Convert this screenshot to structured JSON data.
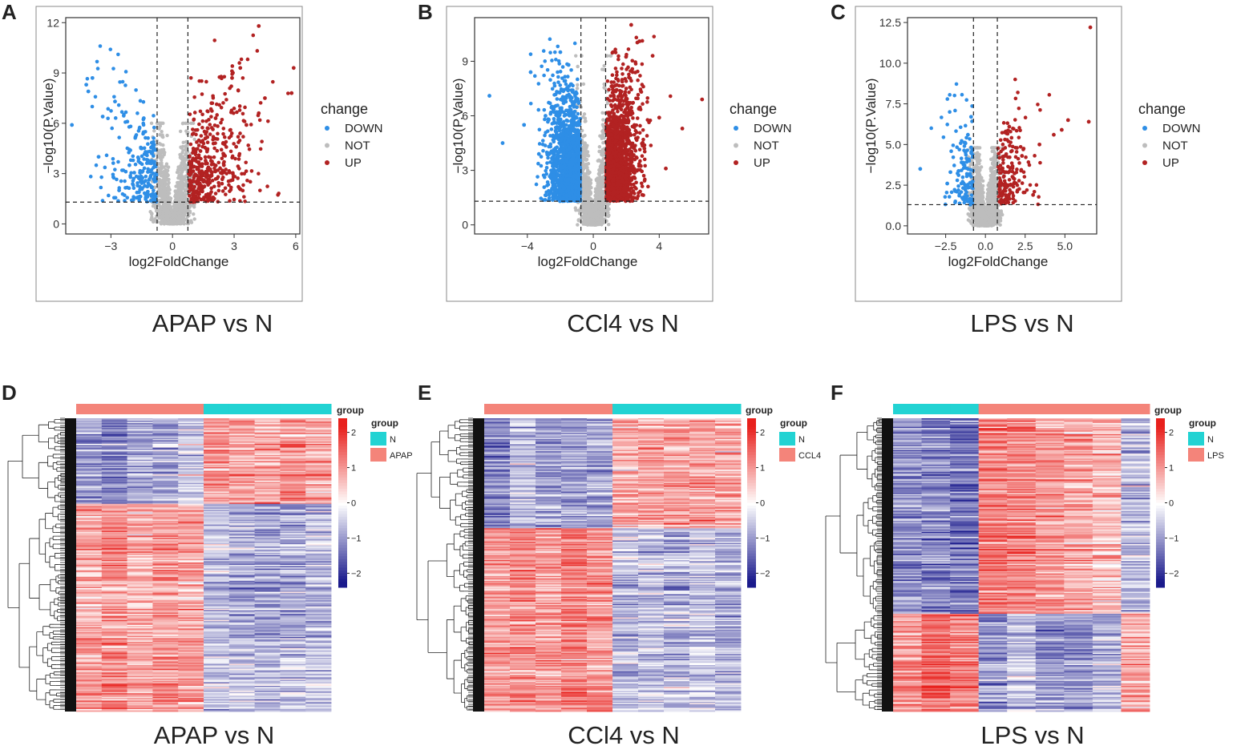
{
  "panel_letters": [
    "A",
    "B",
    "C",
    "D",
    "E",
    "F"
  ],
  "colors": {
    "down": "#2e8ee6",
    "not": "#bdbdbd",
    "up": "#b22222",
    "group_n": "#22d3d3",
    "group_treat": "#f4847a",
    "hm_low": "#1a1a8c",
    "hm_mid": "#ffffff",
    "hm_high": "#e8201c"
  },
  "chart_data": [
    {
      "type": "scatter",
      "panel": "A",
      "caption": "APAP vs N",
      "xlabel": "log2FoldChange",
      "ylabel": "−log10(P.Value)",
      "xticks": [
        "−3",
        "0",
        "3",
        "6"
      ],
      "xtick_values": [
        -3,
        0,
        3,
        6
      ],
      "yticks": [
        "0",
        "3",
        "6",
        "9",
        "12"
      ],
      "ytick_values": [
        0,
        3,
        6,
        9,
        12
      ],
      "xlim": [
        -5.2,
        6.2
      ],
      "ylim": [
        -0.6,
        12.3
      ],
      "fc_threshold": [
        -0.75,
        0.75
      ],
      "p_threshold": 1.3,
      "legend": {
        "title": "change",
        "items": [
          "DOWN",
          "NOT",
          "UP"
        ]
      },
      "series": {
        "DOWN": [
          [
            -4.9,
            5.9
          ],
          [
            -3.9,
            8.7
          ],
          [
            -4.2,
            8.3
          ],
          [
            -4.1,
            7.9
          ],
          [
            -2.8,
            7.3
          ],
          [
            -3.4,
            6.4
          ],
          [
            -2.2,
            6.1
          ],
          [
            -3.6,
            4.0
          ],
          [
            -2.6,
            2.0
          ],
          [
            -1.5,
            4.5
          ],
          [
            -1.2,
            3.1
          ],
          [
            -1.8,
            5.2
          ],
          [
            -1.0,
            2.2
          ],
          [
            -2.1,
            3.5
          ],
          [
            -1.4,
            6.3
          ],
          [
            -0.9,
            1.6
          ]
        ],
        "UP": [
          [
            4.2,
            11.8
          ],
          [
            5.9,
            9.3
          ],
          [
            3.3,
            9.3
          ],
          [
            2.9,
            8.7
          ],
          [
            5.8,
            7.8
          ],
          [
            4.5,
            7.5
          ],
          [
            4.2,
            6.6
          ],
          [
            3.6,
            5.9
          ],
          [
            2.1,
            6.3
          ],
          [
            1.6,
            5.1
          ],
          [
            2.5,
            3.5
          ],
          [
            1.2,
            2.4
          ],
          [
            1.0,
            1.6
          ],
          [
            3.1,
            4.6
          ],
          [
            1.9,
            7.2
          ],
          [
            0.9,
            3.0
          ]
        ],
        "NOT_max_y": 6.0
      },
      "density": {
        "down_n": 230,
        "up_n": 420,
        "down_spread": 1.6,
        "up_spread": 2.3
      }
    },
    {
      "type": "scatter",
      "panel": "B",
      "caption": "CCl4 vs N",
      "xlabel": "log2FoldChange",
      "ylabel": "−log10(P.Value)",
      "xticks": [
        "−4",
        "0",
        "4"
      ],
      "xtick_values": [
        -4,
        0,
        4
      ],
      "yticks": [
        "0",
        "3",
        "6",
        "9"
      ],
      "ytick_values": [
        0,
        3,
        6,
        9
      ],
      "xlim": [
        -7.2,
        7.0
      ],
      "ylim": [
        -0.5,
        11.4
      ],
      "fc_threshold": [
        -0.75,
        0.75
      ],
      "p_threshold": 1.3,
      "legend": {
        "title": "change",
        "items": [
          "DOWN",
          "NOT",
          "UP"
        ]
      },
      "series": {
        "DOWN": [
          [
            -6.3,
            7.1
          ],
          [
            -5.5,
            4.5
          ],
          [
            -3.8,
            8.4
          ],
          [
            -2.9,
            6.0
          ],
          [
            -2.0,
            9.5
          ],
          [
            -1.5,
            8.8
          ],
          [
            -4.2,
            5.5
          ],
          [
            -3.3,
            3.9
          ],
          [
            -2.5,
            2.0
          ],
          [
            -1.1,
            1.5
          ],
          [
            -1.8,
            3.2
          ],
          [
            -0.9,
            6.8
          ]
        ],
        "UP": [
          [
            2.3,
            11.0
          ],
          [
            2.8,
            10.1
          ],
          [
            3.6,
            9.3
          ],
          [
            6.6,
            6.9
          ],
          [
            5.4,
            5.3
          ],
          [
            4.0,
            5.9
          ],
          [
            3.1,
            4.2
          ],
          [
            1.5,
            2.2
          ],
          [
            1.0,
            1.5
          ],
          [
            2.0,
            7.5
          ],
          [
            1.2,
            9.5
          ],
          [
            4.4,
            3.1
          ]
        ],
        "NOT_max_y": 9.3
      },
      "density": {
        "down_n": 1500,
        "up_n": 1500,
        "down_spread": 1.3,
        "up_spread": 1.3
      }
    },
    {
      "type": "scatter",
      "panel": "C",
      "caption": "LPS vs N",
      "xlabel": "log2FoldChange",
      "ylabel": "−log10(P.Value)",
      "xticks": [
        "−2.5",
        "0.0",
        "2.5",
        "5.0"
      ],
      "xtick_values": [
        -2.5,
        0,
        2.5,
        5
      ],
      "yticks": [
        "0.0",
        "2.5",
        "5.0",
        "7.5",
        "10.0",
        "12.5"
      ],
      "ytick_values": [
        0,
        2.5,
        5,
        7.5,
        10,
        12.5
      ],
      "xlim": [
        -4.9,
        7.0
      ],
      "ylim": [
        -0.5,
        12.8
      ],
      "fc_threshold": [
        -0.75,
        0.75
      ],
      "p_threshold": 1.3,
      "legend": {
        "title": "change",
        "items": [
          "DOWN",
          "NOT",
          "UP"
        ]
      },
      "series": {
        "DOWN": [
          [
            -4.1,
            3.5
          ],
          [
            -2.4,
            2.6
          ],
          [
            -2.2,
            3.3
          ],
          [
            -1.5,
            3.9
          ],
          [
            -0.9,
            6.7
          ],
          [
            -1.1,
            5.6
          ],
          [
            -1.8,
            2.1
          ],
          [
            -1.0,
            1.5
          ]
        ],
        "UP": [
          [
            6.6,
            12.2
          ],
          [
            6.5,
            6.4
          ],
          [
            5.2,
            6.5
          ],
          [
            4.8,
            5.9
          ],
          [
            4.3,
            5.6
          ],
          [
            3.4,
            5.0
          ],
          [
            2.3,
            4.3
          ],
          [
            1.5,
            6.1
          ],
          [
            1.0,
            1.6
          ],
          [
            2.0,
            2.1
          ],
          [
            3.0,
            1.9
          ],
          [
            1.3,
            3.3
          ]
        ],
        "NOT_max_y": 4.8
      },
      "density": {
        "down_n": 120,
        "up_n": 170,
        "down_spread": 1.2,
        "up_spread": 1.4
      }
    },
    {
      "type": "heatmap",
      "panel": "D",
      "caption": "APAP vs N",
      "columns": [
        "APAP",
        "APAP",
        "APAP",
        "APAP",
        "APAP",
        "N",
        "N",
        "N",
        "N",
        "N"
      ],
      "clusters": [
        {
          "rows": 70,
          "values": [
            -1.0,
            -1.2,
            -0.8,
            -0.9,
            -0.5,
            1.0,
            0.9,
            0.8,
            1.1,
            0.9
          ]
        },
        {
          "rows": 170,
          "values": [
            0.9,
            1.1,
            0.8,
            1.0,
            0.9,
            -0.6,
            -0.7,
            -0.8,
            -0.7,
            -0.6
          ]
        }
      ],
      "legend": {
        "title": "group",
        "entries": [
          "N",
          "APAP"
        ],
        "scale_ticks": [
          "2",
          "1",
          "0",
          "−1",
          "−2"
        ],
        "scale_values": [
          2,
          1,
          0,
          -1,
          -2
        ],
        "colorbar_title": "group"
      }
    },
    {
      "type": "heatmap",
      "panel": "E",
      "caption": "CCl4 vs N",
      "columns": [
        "CCL4",
        "CCL4",
        "CCL4",
        "CCL4",
        "CCL4",
        "N",
        "N",
        "N",
        "N",
        "N"
      ],
      "clusters": [
        {
          "rows": 90,
          "values": [
            -1.2,
            -0.7,
            -0.9,
            -0.9,
            -0.8,
            0.8,
            0.9,
            0.9,
            1.0,
            0.9
          ]
        },
        {
          "rows": 150,
          "values": [
            1.0,
            1.1,
            0.9,
            1.2,
            1.0,
            -0.7,
            -0.6,
            -0.7,
            -0.6,
            -0.7
          ]
        }
      ],
      "legend": {
        "title": "group",
        "entries": [
          "N",
          "CCL4"
        ],
        "scale_ticks": [
          "2",
          "1",
          "0",
          "−1",
          "−2"
        ],
        "scale_values": [
          2,
          1,
          0,
          -1,
          -2
        ],
        "colorbar_title": "group"
      }
    },
    {
      "type": "heatmap",
      "panel": "F",
      "caption": "LPS vs N",
      "columns": [
        "N",
        "N",
        "N",
        "LPS",
        "LPS",
        "LPS",
        "LPS",
        "LPS",
        "LPS"
      ],
      "clusters": [
        {
          "rows": 160,
          "values": [
            -1.0,
            -1.1,
            -1.3,
            1.3,
            1.2,
            1.0,
            0.9,
            0.6,
            -0.6
          ]
        },
        {
          "rows": 80,
          "values": [
            1.1,
            1.5,
            1.2,
            -1.0,
            -0.6,
            -1.0,
            -1.1,
            -0.7,
            0.8
          ]
        }
      ],
      "legend": {
        "title": "group",
        "entries": [
          "N",
          "LPS"
        ],
        "scale_ticks": [
          "2",
          "1",
          "0",
          "−1",
          "−2"
        ],
        "scale_values": [
          2,
          1,
          0,
          -1,
          -2
        ],
        "colorbar_title": "group"
      }
    }
  ]
}
